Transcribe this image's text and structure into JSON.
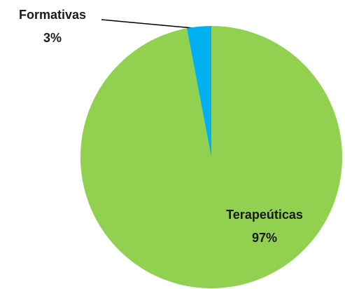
{
  "chart_data": {
    "type": "pie",
    "categories": [
      "Terapeúticas",
      "Formativas"
    ],
    "values": [
      97,
      3
    ],
    "value_labels": [
      "97%",
      "3%"
    ],
    "colors": [
      "#92d050",
      "#00b0f0"
    ]
  }
}
